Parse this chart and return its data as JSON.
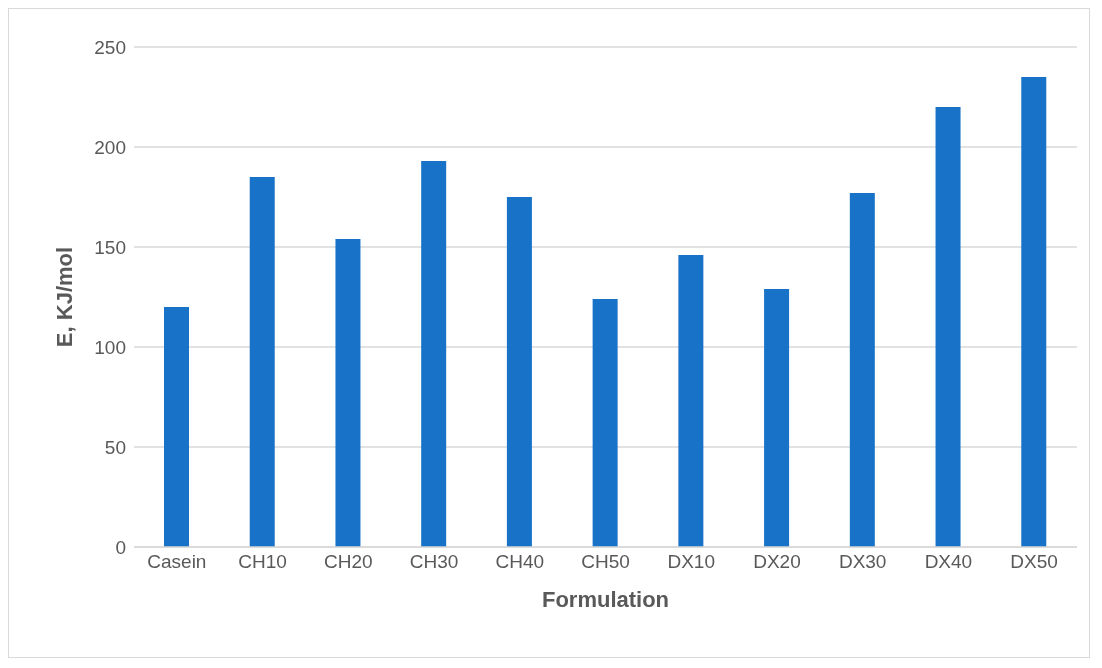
{
  "chart_data": {
    "type": "bar",
    "xlabel": "Formulation",
    "ylabel": "E, KJ/mol",
    "categories": [
      "Casein",
      "CH10",
      "CH20",
      "CH30",
      "CH40",
      "CH50",
      "DX10",
      "DX20",
      "DX30",
      "DX40",
      "DX50"
    ],
    "values": [
      120,
      185,
      154,
      193,
      175,
      124,
      146,
      129,
      177,
      220,
      235
    ],
    "color": "#1772c8",
    "ylim": [
      0,
      250
    ],
    "yticks": [
      0,
      50,
      100,
      150,
      200,
      250
    ],
    "grid": "y",
    "legend": false
  }
}
